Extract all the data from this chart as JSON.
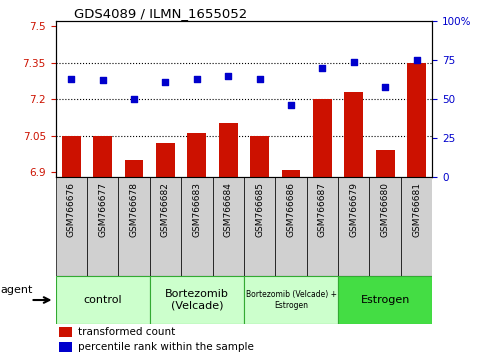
{
  "title": "GDS4089 / ILMN_1655052",
  "samples": [
    "GSM766676",
    "GSM766677",
    "GSM766678",
    "GSM766682",
    "GSM766683",
    "GSM766684",
    "GSM766685",
    "GSM766686",
    "GSM766687",
    "GSM766679",
    "GSM766680",
    "GSM766681"
  ],
  "bar_values": [
    7.05,
    7.05,
    6.95,
    7.02,
    7.06,
    7.1,
    7.05,
    6.91,
    7.2,
    7.23,
    6.99,
    7.35
  ],
  "scatter_values": [
    63,
    62,
    50,
    61,
    63,
    65,
    63,
    46,
    70,
    74,
    58,
    75
  ],
  "ylim_left": [
    6.88,
    7.52
  ],
  "ylim_right": [
    0,
    100
  ],
  "yticks_left": [
    6.9,
    7.05,
    7.2,
    7.35,
    7.5
  ],
  "yticks_right": [
    0,
    25,
    50,
    75,
    100
  ],
  "ytick_labels_left": [
    "6.9",
    "7.05",
    "7.2",
    "7.35",
    "7.5"
  ],
  "ytick_labels_right": [
    "0",
    "25",
    "50",
    "75",
    "100%"
  ],
  "hlines": [
    7.05,
    7.2,
    7.35
  ],
  "bar_color": "#cc1100",
  "scatter_color": "#0000cc",
  "bar_width": 0.6,
  "groups": [
    {
      "label": "control",
      "start": 0,
      "end": 3,
      "color": "#ccffcc",
      "fontsize": 8
    },
    {
      "label": "Bortezomib\n(Velcade)",
      "start": 3,
      "end": 6,
      "color": "#ccffcc",
      "fontsize": 8
    },
    {
      "label": "Bortezomib (Velcade) +\nEstrogen",
      "start": 6,
      "end": 9,
      "color": "#ccffcc",
      "fontsize": 5.5
    },
    {
      "label": "Estrogen",
      "start": 9,
      "end": 12,
      "color": "#44dd44",
      "fontsize": 8
    }
  ],
  "legend_bar_label": "transformed count",
  "legend_scatter_label": "percentile rank within the sample",
  "agent_label": "agent",
  "tick_bg_color": "#d0d0d0",
  "group_border_color": "#33aa33",
  "plot_bg": "#ffffff"
}
